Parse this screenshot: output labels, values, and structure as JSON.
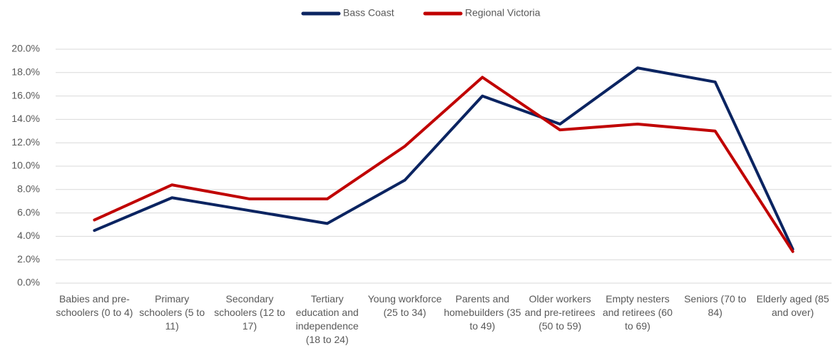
{
  "chart_data": {
    "type": "line",
    "categories": [
      "Babies and pre-schoolers (0 to 4)",
      "Primary schoolers (5 to 11)",
      "Secondary schoolers (12 to 17)",
      "Tertiary education and independence (18 to 24)",
      "Young workforce (25 to 34)",
      "Parents and homebuilders (35 to 49)",
      "Older workers and pre-retirees (50 to 59)",
      "Empty nesters and retirees (60 to 69)",
      "Seniors (70 to 84)",
      "Elderly aged (85 and over)"
    ],
    "series": [
      {
        "name": "Bass Coast",
        "color": "#0b2461",
        "values": [
          4.5,
          7.3,
          6.2,
          5.1,
          8.8,
          16.0,
          13.6,
          18.4,
          17.2,
          2.9
        ]
      },
      {
        "name": "Regional Victoria",
        "color": "#c00000",
        "values": [
          5.4,
          8.4,
          7.2,
          7.2,
          11.7,
          17.6,
          13.1,
          13.6,
          13.0,
          2.7
        ]
      }
    ],
    "ylim": [
      0,
      20
    ],
    "yticks": [
      {
        "value": 0,
        "label": "0.0%"
      },
      {
        "value": 2,
        "label": "2.0%"
      },
      {
        "value": 4,
        "label": "4.0%"
      },
      {
        "value": 6,
        "label": "6.0%"
      },
      {
        "value": 8,
        "label": "8.0%"
      },
      {
        "value": 10,
        "label": "10.0%"
      },
      {
        "value": 12,
        "label": "12.0%"
      },
      {
        "value": 14,
        "label": "14.0%"
      },
      {
        "value": 16,
        "label": "16.0%"
      },
      {
        "value": 18,
        "label": "18.0%"
      },
      {
        "value": 20,
        "label": "20.0%"
      }
    ],
    "grid": true,
    "legend": "top"
  }
}
